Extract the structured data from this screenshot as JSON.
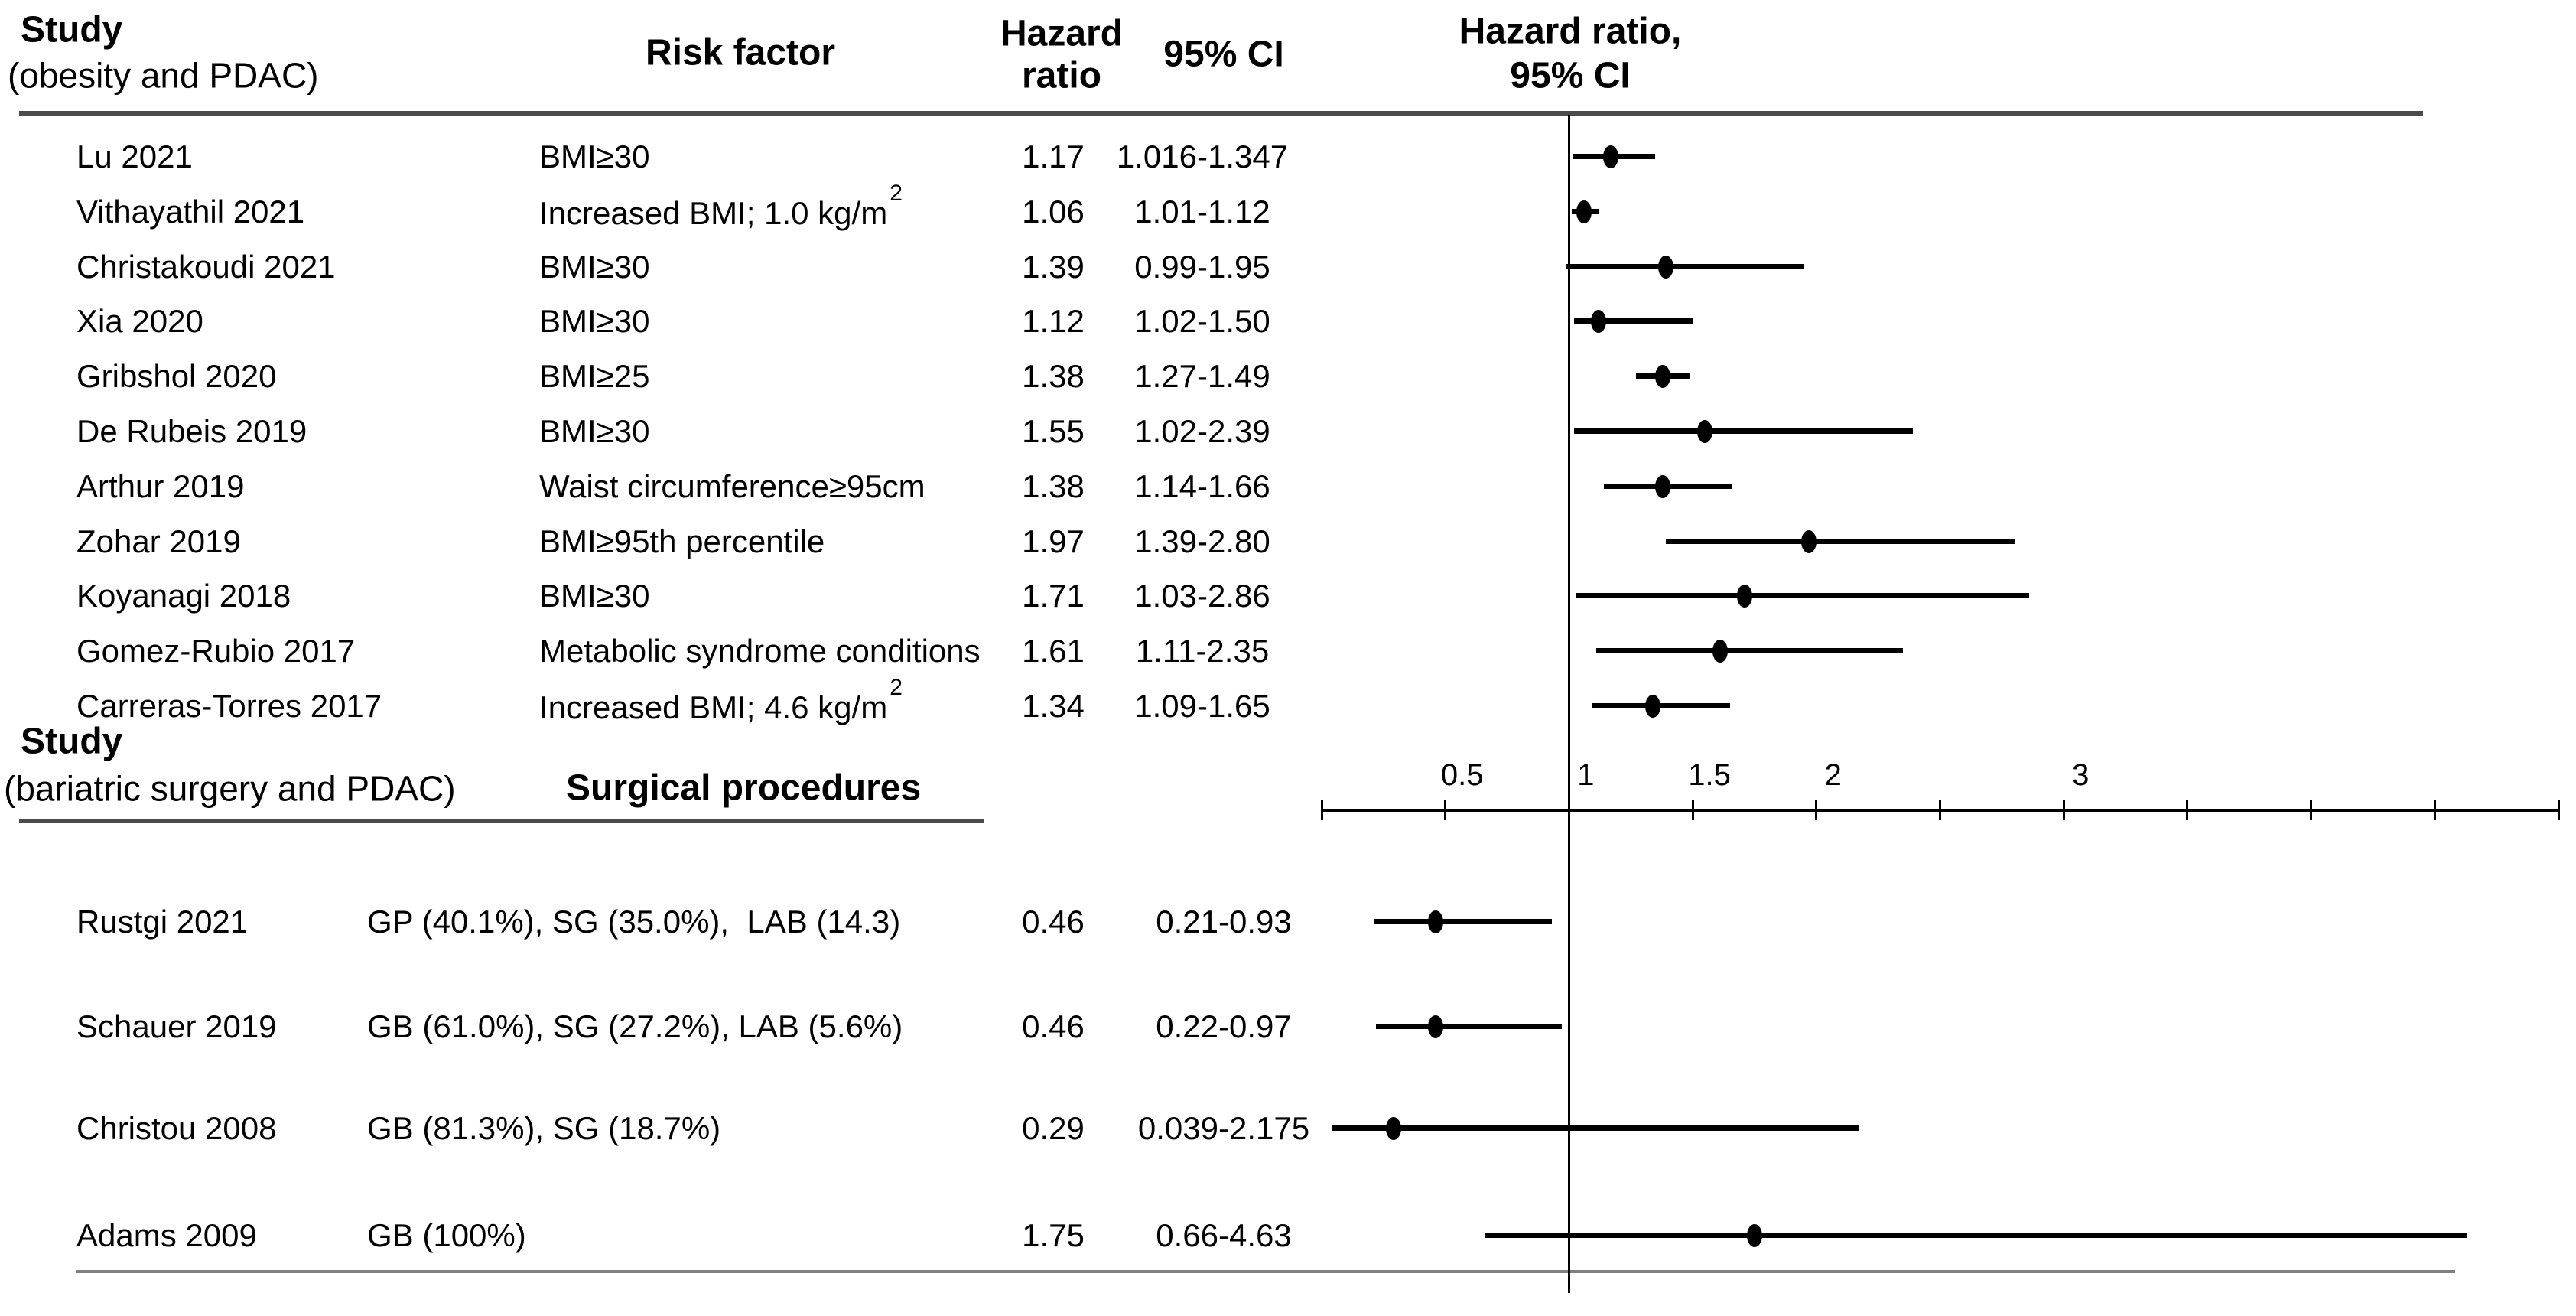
{
  "header": {
    "study_line1": "Study",
    "study_line2": "(obesity and PDAC)",
    "risk_factor": "Risk factor",
    "hazard_line1": "Hazard",
    "hazard_line2": "ratio",
    "ci": "95% CI",
    "plot_line1": "Hazard ratio,",
    "plot_line2": "95% CI"
  },
  "section2": {
    "study_line1": "Study",
    "study_line2": "(bariatric surgery and PDAC)",
    "procedures": "Surgical procedures"
  },
  "colors": {
    "text": "#000000",
    "rule_dark": "#4b4b4b",
    "rule_gray": "#808080",
    "marker": "#000000"
  },
  "chart_data": {
    "type": "forest",
    "x_axis": {
      "min": 0,
      "max": 5,
      "tick_step": 0.5,
      "reference_line": 1,
      "labeled_ticks": [
        {
          "value": 0.5,
          "label": "0.5"
        },
        {
          "value": 1,
          "label": "1"
        },
        {
          "value": 1.5,
          "label": "1.5"
        },
        {
          "value": 2,
          "label": "2"
        },
        {
          "value": 3,
          "label": "3"
        }
      ]
    },
    "sections": [
      {
        "name": "obesity and PDAC",
        "rows": [
          {
            "study": "Lu 2021",
            "factor": "BMI≥30",
            "hr_text": "1.17",
            "ci_text": "1.016-1.347",
            "hr": 1.17,
            "lo": 1.016,
            "hi": 1.347
          },
          {
            "study": "Vithayathil 2021",
            "factor": "Increased BMI; 1.0 kg/m",
            "factor_sup": "2",
            "hr_text": "1.06",
            "ci_text": "1.01-1.12",
            "hr": 1.06,
            "lo": 1.01,
            "hi": 1.12
          },
          {
            "study": "Christakoudi 2021",
            "factor": "BMI≥30",
            "hr_text": "1.39",
            "ci_text": "0.99-1.95",
            "hr": 1.39,
            "lo": 0.99,
            "hi": 1.95
          },
          {
            "study": "Xia 2020",
            "factor": "BMI≥30",
            "hr_text": "1.12",
            "ci_text": "1.02-1.50",
            "hr": 1.12,
            "lo": 1.02,
            "hi": 1.5
          },
          {
            "study": "Gribshol 2020",
            "factor": "BMI≥25",
            "hr_text": "1.38",
            "ci_text": "1.27-1.49",
            "hr": 1.38,
            "lo": 1.27,
            "hi": 1.49
          },
          {
            "study": "De Rubeis 2019",
            "factor": "BMI≥30",
            "hr_text": "1.55",
            "ci_text": "1.02-2.39",
            "hr": 1.55,
            "lo": 1.02,
            "hi": 2.39
          },
          {
            "study": "Arthur 2019",
            "factor": "Waist circumference≥95cm",
            "hr_text": "1.38",
            "ci_text": "1.14-1.66",
            "hr": 1.38,
            "lo": 1.14,
            "hi": 1.66
          },
          {
            "study": "Zohar 2019",
            "factor": "BMI≥95th percentile",
            "hr_text": "1.97",
            "ci_text": "1.39-2.80",
            "hr": 1.97,
            "lo": 1.39,
            "hi": 2.8
          },
          {
            "study": "Koyanagi 2018",
            "factor": "BMI≥30",
            "hr_text": "1.71",
            "ci_text": "1.03-2.86",
            "hr": 1.71,
            "lo": 1.03,
            "hi": 2.86
          },
          {
            "study": "Gomez-Rubio 2017",
            "factor": "Metabolic syndrome conditions",
            "hr_text": "1.61",
            "ci_text": "1.11-2.35",
            "hr": 1.61,
            "lo": 1.11,
            "hi": 2.35
          },
          {
            "study": "Carreras-Torres 2017",
            "factor": "Increased BMI; 4.6 kg/m",
            "factor_sup": "2",
            "hr_text": "1.34",
            "ci_text": "1.09-1.65",
            "hr": 1.34,
            "lo": 1.09,
            "hi": 1.65
          }
        ]
      },
      {
        "name": "bariatric surgery and PDAC",
        "rows": [
          {
            "study": "Rustgi 2021",
            "factor": "GP (40.1%), SG (35.0%),  LAB (14.3)",
            "hr_text": "0.46",
            "ci_text": "0.21-0.93",
            "hr": 0.46,
            "lo": 0.21,
            "hi": 0.93
          },
          {
            "study": "Schauer 2019",
            "factor": "GB (61.0%), SG (27.2%), LAB (5.6%)",
            "hr_text": "0.46",
            "ci_text": "0.22-0.97",
            "hr": 0.46,
            "lo": 0.22,
            "hi": 0.97
          },
          {
            "study": "Christou 2008",
            "factor": "GB (81.3%), SG (18.7%)",
            "hr_text": "0.29",
            "ci_text": "0.039-2.175",
            "hr": 0.29,
            "lo": 0.039,
            "hi": 2.175
          },
          {
            "study": "Adams 2009",
            "factor": "GB (100%)",
            "hr_text": "1.75",
            "ci_text": "0.66-4.63",
            "hr": 1.75,
            "lo": 0.66,
            "hi": 4.63
          }
        ]
      }
    ]
  }
}
